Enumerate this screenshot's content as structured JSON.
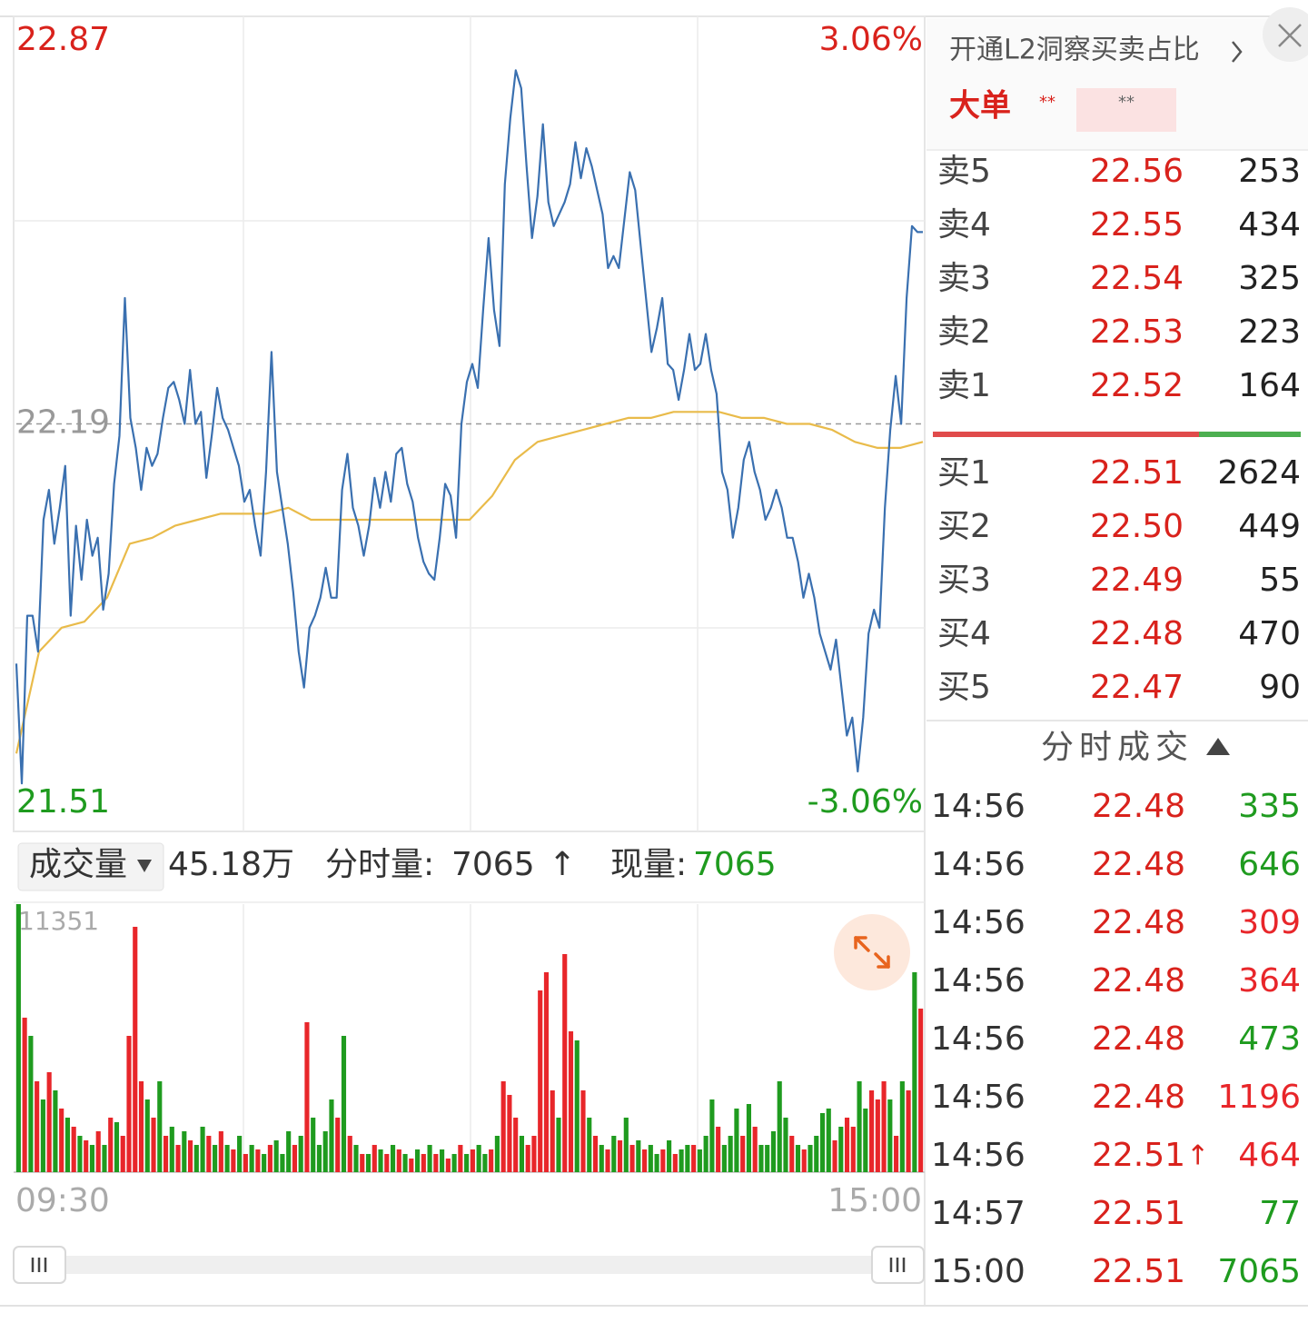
{
  "chart_data": [
    {
      "type": "line",
      "ylim": [
        21.51,
        22.87
      ],
      "yticks": [
        22.87,
        22.19,
        21.51
      ],
      "y2lim": [
        -3.06,
        3.06
      ],
      "y2ticks": [
        {
          "value": 3.06,
          "label": "3.06%"
        },
        {
          "value": -3.06,
          "label": "-3.06%"
        }
      ],
      "series": [
        {
          "color": "#e9bb4a",
          "values": [
            21.64,
            21.81,
            21.85,
            21.86,
            21.9,
            21.99,
            22.0,
            22.02,
            22.03,
            22.04,
            22.04,
            22.04,
            22.05,
            22.03,
            22.03,
            22.03,
            22.03,
            22.03,
            22.03,
            22.03,
            22.03,
            22.07,
            22.13,
            22.16,
            22.17,
            22.18,
            22.19,
            22.2,
            22.2,
            22.21,
            22.21,
            22.21,
            22.2,
            22.2,
            22.19,
            22.19,
            22.18,
            22.16,
            22.15,
            22.15,
            22.16
          ]
        },
        {
          "color": "#3a70b0",
          "values": [
            21.79,
            21.59,
            21.87,
            21.87,
            21.81,
            22.03,
            22.08,
            21.99,
            22.05,
            22.12,
            21.87,
            22.02,
            21.93,
            22.03,
            21.97,
            22.0,
            21.88,
            21.94,
            22.09,
            22.17,
            22.4,
            22.2,
            22.15,
            22.08,
            22.15,
            22.12,
            22.14,
            22.2,
            22.25,
            22.26,
            22.23,
            22.19,
            22.28,
            22.19,
            22.21,
            22.1,
            22.17,
            22.25,
            22.2,
            22.18,
            22.15,
            22.12,
            22.06,
            22.08,
            22.02,
            21.97,
            22.11,
            22.31,
            22.11,
            22.05,
            21.99,
            21.91,
            21.81,
            21.75,
            21.85,
            21.87,
            21.9,
            21.95,
            21.9,
            21.9,
            22.08,
            22.14,
            22.05,
            22.02,
            21.97,
            22.02,
            22.1,
            22.05,
            22.11,
            22.06,
            22.14,
            22.15,
            22.09,
            22.06,
            22.0,
            21.96,
            21.94,
            21.93,
            22.0,
            22.09,
            22.07,
            22.0,
            22.19,
            22.26,
            22.29,
            22.25,
            22.38,
            22.5,
            22.38,
            22.32,
            22.59,
            22.7,
            22.78,
            22.75,
            22.62,
            22.5,
            22.57,
            22.69,
            22.56,
            22.52,
            22.54,
            22.56,
            22.59,
            22.66,
            22.6,
            22.65,
            22.62,
            22.58,
            22.54,
            22.45,
            22.47,
            22.45,
            22.53,
            22.61,
            22.58,
            22.49,
            22.4,
            22.31,
            22.35,
            22.4,
            22.29,
            22.28,
            22.23,
            22.28,
            22.34,
            22.28,
            22.29,
            22.34,
            22.28,
            22.24,
            22.11,
            22.08,
            22.0,
            22.05,
            22.13,
            22.16,
            22.11,
            22.08,
            22.03,
            22.05,
            22.08,
            22.05,
            22.0,
            22.0,
            21.96,
            21.9,
            21.94,
            21.9,
            21.84,
            21.81,
            21.78,
            21.83,
            21.75,
            21.67,
            21.7,
            21.61,
            21.7,
            21.84,
            21.88,
            21.85,
            22.05,
            22.18,
            22.27,
            22.19,
            22.4,
            22.52,
            22.51,
            22.51
          ]
        }
      ]
    },
    {
      "type": "bar",
      "ylim": [
        0,
        11351
      ],
      "yticks": [
        11351
      ],
      "x_labels": [
        "09:30",
        "15:00"
      ],
      "up_color": "#e8262a",
      "down_color": "#1f9b1f",
      "values": [
        11351,
        6542,
        5772,
        3848,
        3078,
        4233,
        3463,
        2694,
        2309,
        1924,
        1539,
        1347,
        1154,
        1732,
        1154,
        2309,
        2116,
        1539,
        5772,
        10390,
        3848,
        3078,
        2309,
        3848,
        1539,
        1924,
        1154,
        1732,
        1347,
        1154,
        1924,
        1539,
        1154,
        1732,
        1154,
        962,
        1539,
        770,
        1154,
        962,
        770,
        1154,
        1347,
        770,
        1732,
        1154,
        1539,
        6349,
        2309,
        1154,
        1732,
        3078,
        2309,
        5772,
        1539,
        1154,
        770,
        770,
        1154,
        962,
        770,
        1154,
        962,
        770,
        577,
        962,
        770,
        1154,
        770,
        962,
        577,
        770,
        1154,
        770,
        962,
        1154,
        770,
        962,
        1539,
        3848,
        3271,
        2309,
        1539,
        1154,
        1539,
        7696,
        8466,
        3463,
        2309,
        9235,
        5964,
        5580,
        3463,
        2309,
        1539,
        1154,
        962,
        1539,
        1347,
        2309,
        1154,
        1347,
        962,
        1154,
        770,
        962,
        1347,
        770,
        962,
        1154,
        1154,
        962,
        1539,
        3078,
        1924,
        1154,
        1539,
        2694,
        1539,
        2886,
        1924,
        1154,
        1154,
        1732,
        3848,
        2309,
        1539,
        1154,
        962,
        1154,
        1539,
        2501,
        2694,
        1347,
        1924,
        2309,
        1924,
        3848,
        2694,
        3463,
        3078,
        3848,
        3078,
        1539,
        3848,
        3463,
        8466,
        6926
      ],
      "up": [
        false,
        true,
        false,
        true,
        false,
        true,
        false,
        true,
        false,
        true,
        false,
        true,
        false,
        true,
        false,
        true,
        false,
        true,
        true,
        true,
        true,
        false,
        true,
        false,
        true,
        false,
        true,
        false,
        true,
        false,
        false,
        true,
        false,
        true,
        false,
        true,
        false,
        true,
        false,
        true,
        false,
        true,
        false,
        false,
        false,
        true,
        false,
        true,
        false,
        false,
        false,
        false,
        true,
        false,
        true,
        false,
        true,
        false,
        true,
        false,
        true,
        false,
        true,
        false,
        true,
        false,
        true,
        false,
        true,
        false,
        true,
        false,
        true,
        false,
        true,
        false,
        false,
        true,
        false,
        true,
        true,
        true,
        false,
        true,
        true,
        true,
        true,
        true,
        false,
        true,
        true,
        false,
        true,
        false,
        true,
        false,
        true,
        false,
        true,
        false,
        true,
        false,
        true,
        false,
        false,
        true,
        false,
        true,
        false,
        false,
        true,
        false,
        false,
        false,
        true,
        false,
        false,
        false,
        true,
        false,
        true,
        false,
        false,
        false,
        false,
        false,
        true,
        false,
        true,
        false,
        false,
        false,
        false,
        true,
        false,
        true,
        true,
        false,
        false,
        true,
        true,
        true,
        false,
        true,
        false,
        true,
        false,
        true
      ]
    }
  ],
  "volume_header": {
    "tab": "成交量",
    "total": "45.18万",
    "minute_label": "分时量:",
    "minute_value": "7065",
    "minute_arrow": "↑",
    "current_label": "现量:",
    "current_value": "7065"
  },
  "order_panel": {
    "title": "开通L2洞察买卖占比",
    "big_order": {
      "label": "大单",
      "buy": "**",
      "sell": "**"
    },
    "asks": [
      {
        "label": "卖5",
        "price": "22.56",
        "volume": "253"
      },
      {
        "label": "卖4",
        "price": "22.55",
        "volume": "434"
      },
      {
        "label": "卖3",
        "price": "22.54",
        "volume": "325"
      },
      {
        "label": "卖2",
        "price": "22.53",
        "volume": "223"
      },
      {
        "label": "卖1",
        "price": "22.52",
        "volume": "164"
      }
    ],
    "bids": [
      {
        "label": "买1",
        "price": "22.51",
        "volume": "2624"
      },
      {
        "label": "买2",
        "price": "22.50",
        "volume": "449"
      },
      {
        "label": "买3",
        "price": "22.49",
        "volume": "55"
      },
      {
        "label": "买4",
        "price": "22.48",
        "volume": "470"
      },
      {
        "label": "买5",
        "price": "22.47",
        "volume": "90"
      }
    ],
    "trades_title": "分时成交",
    "trades": [
      {
        "time": "14:56",
        "price": "22.48",
        "volume": "335",
        "volume_color": "#1f9b1f"
      },
      {
        "time": "14:56",
        "price": "22.48",
        "volume": "646",
        "volume_color": "#1f9b1f"
      },
      {
        "time": "14:56",
        "price": "22.48",
        "volume": "309",
        "volume_color": "#e8262a"
      },
      {
        "time": "14:56",
        "price": "22.48",
        "volume": "364",
        "volume_color": "#e8262a"
      },
      {
        "time": "14:56",
        "price": "22.48",
        "volume": "473",
        "volume_color": "#1f9b1f"
      },
      {
        "time": "14:56",
        "price": "22.48",
        "volume": "1196",
        "volume_color": "#e8262a"
      },
      {
        "time": "14:56",
        "price": "22.51",
        "arrow": "↑",
        "volume": "464",
        "volume_color": "#e8262a"
      },
      {
        "time": "14:57",
        "price": "22.51",
        "volume": "77",
        "volume_color": "#1f9b1f"
      },
      {
        "time": "15:00",
        "price": "22.51",
        "volume": "7065",
        "volume_color": "#1f9b1f"
      }
    ]
  }
}
